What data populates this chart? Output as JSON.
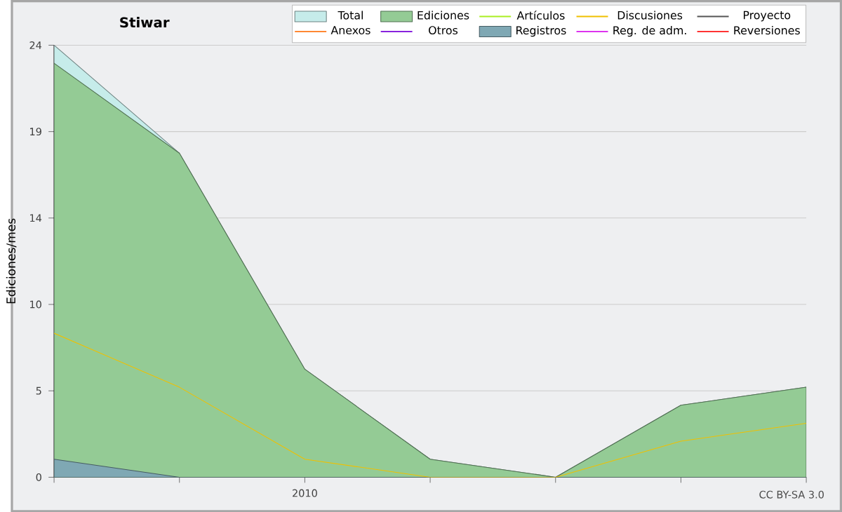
{
  "chart_data": {
    "type": "area",
    "title": "Stiwar",
    "ylabel": "Ediciones/mes",
    "categories": [
      null,
      null,
      "2010",
      null,
      null,
      null,
      null
    ],
    "ylim": [
      0,
      24
    ],
    "yticks": [
      0,
      {
        "value": 4.8,
        "label": "5"
      },
      {
        "value": 9.6,
        "label": "10"
      },
      {
        "value": 14.4,
        "label": "14"
      },
      {
        "value": 19.2,
        "label": "19"
      },
      24
    ],
    "grid": "y",
    "legend": "top right",
    "line_style": "solid",
    "annotations": [
      "CC BY-SA 3.0"
    ],
    "series": [
      {
        "name": "Total",
        "color": "#c6ecea",
        "values": [
          24,
          18,
          6,
          1,
          0,
          4,
          5
        ]
      },
      {
        "name": "Ediciones",
        "color": "#94cb95",
        "values": [
          23,
          18,
          6,
          1,
          0,
          4,
          5
        ]
      },
      {
        "name": "Artículos",
        "type": "line",
        "color": "#aaee22",
        "values": [
          null,
          null,
          null,
          null,
          null,
          null,
          null
        ]
      },
      {
        "name": "Discusiones",
        "type": "line",
        "color": "#f0c000",
        "values": [
          8,
          5,
          1,
          0,
          0,
          2,
          3
        ]
      },
      {
        "name": "Proyecto",
        "type": "line",
        "color": "#555555",
        "values": [
          null,
          null,
          null,
          null,
          null,
          null,
          null
        ]
      },
      {
        "name": "Anexos",
        "type": "line",
        "color": "#ff8833",
        "values": [
          null,
          null,
          null,
          null,
          null,
          null,
          null
        ]
      },
      {
        "name": "Otros",
        "type": "line",
        "color": "#8822dd",
        "values": [
          null,
          null,
          null,
          null,
          null,
          null,
          null
        ]
      },
      {
        "name": "Registros",
        "color": "#7fa8b4",
        "values": [
          1,
          0,
          0,
          0,
          0,
          0,
          0
        ]
      },
      {
        "name": "Reg. de adm.",
        "type": "line",
        "color": "#dd33ee",
        "values": [
          null,
          null,
          null,
          null,
          null,
          null,
          null
        ]
      },
      {
        "name": "Reversiones",
        "type": "line",
        "color": "#ff3333",
        "values": [
          null,
          null,
          null,
          null,
          null,
          null,
          null
        ]
      }
    ]
  }
}
